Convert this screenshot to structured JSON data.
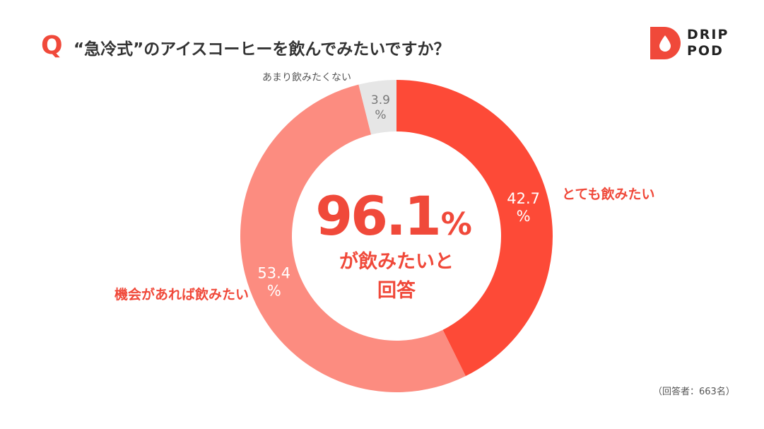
{
  "header": {
    "q_mark": "Q",
    "question": "“急冷式”のアイスコーヒーを飲んでみたいですか？"
  },
  "brand": {
    "line1": "DRIP",
    "line2": "POD",
    "color": "#f0493a"
  },
  "chart_data": {
    "type": "pie",
    "donut": true,
    "start_angle_deg": 0,
    "direction": "clockwise",
    "slices": [
      {
        "label": "とても飲みたい",
        "value": 42.7,
        "value_text": [
          "42.7",
          "%"
        ],
        "color": "#fd4a37",
        "label_color": "#f0493a",
        "value_color": "#ffffff"
      },
      {
        "label": "機会があれば飲みたい",
        "value": 53.4,
        "value_text": [
          "53.4",
          "%"
        ],
        "color": "#fc8c80",
        "label_color": "#f0493a",
        "value_color": "#ffffff"
      },
      {
        "label": "あまり飲みたくない",
        "value": 3.9,
        "value_text": [
          "3.9",
          "%"
        ],
        "color": "#e6e6e6",
        "label_color": "#555555",
        "value_color": "#777777"
      }
    ],
    "center": {
      "number": "96.1",
      "unit": "%",
      "line1": "が飲みたいと",
      "line2": "回答",
      "color": "#f0493a"
    }
  },
  "footer": {
    "respondents": "（回答者：663名）"
  }
}
